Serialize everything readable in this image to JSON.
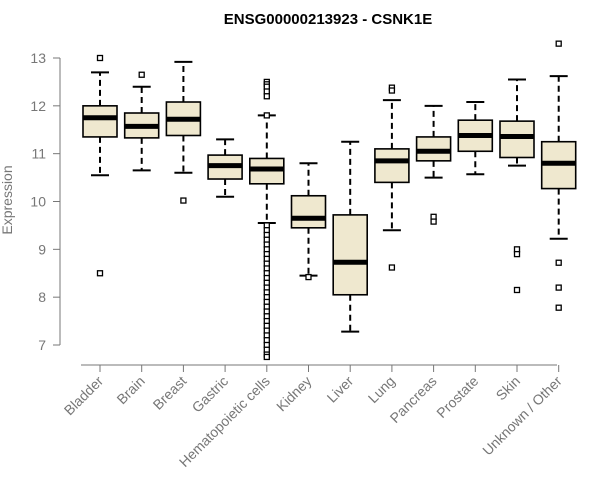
{
  "chart_data": {
    "type": "box",
    "title": "ENSG00000213923 - CSNK1E",
    "ylabel": "Expression",
    "xlabel": "",
    "ylim": [
      7,
      13
    ],
    "yticks": [
      7,
      8,
      9,
      10,
      11,
      12,
      13
    ],
    "box_fill": "#efe8cf",
    "categories": [
      "Bladder",
      "Brain",
      "Breast",
      "Gastric",
      "Hematopoietic cells",
      "Kidney",
      "Liver",
      "Lung",
      "Pancreas",
      "Prostate",
      "Skin",
      "Unknown / Other"
    ],
    "boxes": [
      {
        "name": "Bladder",
        "whisker_low": 10.55,
        "q1": 11.35,
        "median": 11.75,
        "q3": 12.0,
        "whisker_high": 12.7,
        "outliers": [
          13.0,
          8.5
        ]
      },
      {
        "name": "Brain",
        "whisker_low": 10.65,
        "q1": 11.33,
        "median": 11.57,
        "q3": 11.85,
        "whisker_high": 12.4,
        "outliers": [
          12.65
        ]
      },
      {
        "name": "Breast",
        "whisker_low": 10.6,
        "q1": 11.38,
        "median": 11.72,
        "q3": 12.08,
        "whisker_high": 12.92,
        "outliers": [
          10.02
        ]
      },
      {
        "name": "Gastric",
        "whisker_low": 10.1,
        "q1": 10.47,
        "median": 10.75,
        "q3": 10.97,
        "whisker_high": 11.3,
        "outliers": []
      },
      {
        "name": "Hematopoietic cells",
        "whisker_low": 9.55,
        "q1": 10.37,
        "median": 10.68,
        "q3": 10.9,
        "whisker_high": 11.8,
        "outliers": [
          12.5,
          12.45,
          12.4,
          12.3,
          12.2,
          11.8,
          9.5,
          9.4,
          9.3,
          9.2,
          9.1,
          9.0,
          8.9,
          8.8,
          8.7,
          8.6,
          8.5,
          8.4,
          8.3,
          8.2,
          8.1,
          8.0,
          7.9,
          7.8,
          7.7,
          7.6,
          7.5,
          7.4,
          7.3,
          7.2,
          7.1,
          7.0,
          6.9,
          6.8,
          6.75
        ]
      },
      {
        "name": "Kidney",
        "whisker_low": 8.45,
        "q1": 9.45,
        "median": 9.65,
        "q3": 10.12,
        "whisker_high": 10.8,
        "outliers": [
          8.42
        ]
      },
      {
        "name": "Liver",
        "whisker_low": 7.28,
        "q1": 8.05,
        "median": 8.73,
        "q3": 9.72,
        "whisker_high": 11.25,
        "outliers": []
      },
      {
        "name": "Lung",
        "whisker_low": 9.4,
        "q1": 10.4,
        "median": 10.85,
        "q3": 11.1,
        "whisker_high": 12.12,
        "outliers": [
          12.38,
          12.32,
          8.62
        ]
      },
      {
        "name": "Pancreas",
        "whisker_low": 10.5,
        "q1": 10.85,
        "median": 11.05,
        "q3": 11.35,
        "whisker_high": 12.0,
        "outliers": [
          9.68,
          9.58
        ]
      },
      {
        "name": "Prostate",
        "whisker_low": 10.57,
        "q1": 11.05,
        "median": 11.38,
        "q3": 11.7,
        "whisker_high": 12.08,
        "outliers": []
      },
      {
        "name": "Skin",
        "whisker_low": 10.75,
        "q1": 10.92,
        "median": 11.36,
        "q3": 11.68,
        "whisker_high": 12.55,
        "outliers": [
          9.0,
          8.9,
          8.15
        ]
      },
      {
        "name": "Unknown / Other",
        "whisker_low": 9.22,
        "q1": 10.27,
        "median": 10.8,
        "q3": 11.25,
        "whisker_high": 12.62,
        "outliers": [
          13.3,
          8.72,
          8.2,
          7.78
        ]
      }
    ]
  }
}
